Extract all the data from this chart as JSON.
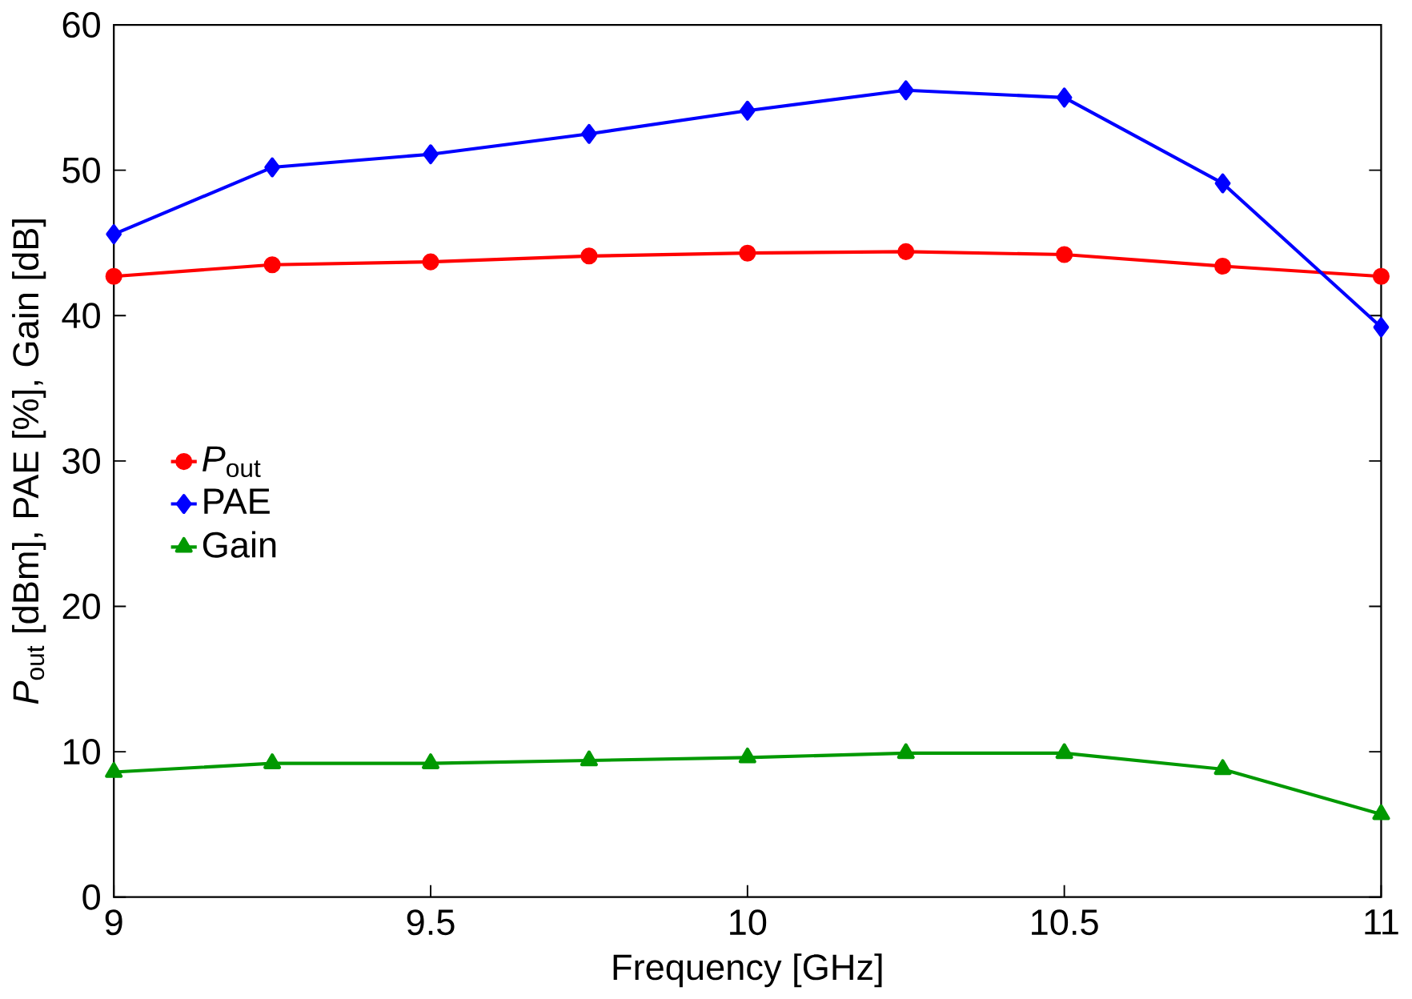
{
  "chart_data": {
    "type": "line",
    "xlabel": "Frequency [GHz]",
    "ylabel": "*P*$_{out}$ [dBm], PAE [%], Gain [dB]",
    "x": [
      9,
      9.25,
      9.5,
      9.75,
      10,
      10.25,
      10.5,
      10.75,
      11
    ],
    "xlim": [
      9,
      11
    ],
    "xticks": [
      9,
      9.5,
      10,
      10.5,
      11
    ],
    "ylim": [
      0,
      60
    ],
    "yticks": [
      0,
      10,
      20,
      30,
      40,
      50,
      60
    ],
    "grid": false,
    "legend": "left",
    "series": [
      {
        "name": "*P*$_{out}$",
        "color": "#ff0000",
        "marker": "circle",
        "values": [
          42.7,
          43.5,
          43.7,
          44.1,
          44.3,
          44.4,
          44.2,
          43.4,
          42.7
        ]
      },
      {
        "name": "PAE",
        "color": "#0000ff",
        "marker": "diamond",
        "values": [
          45.6,
          50.2,
          51.1,
          52.5,
          54.1,
          55.5,
          55.0,
          49.1,
          39.2
        ]
      },
      {
        "name": "Gain",
        "color": "#009900",
        "marker": "triangle",
        "values": [
          8.6,
          9.2,
          9.2,
          9.4,
          9.6,
          9.9,
          9.9,
          8.8,
          5.7
        ]
      }
    ]
  }
}
